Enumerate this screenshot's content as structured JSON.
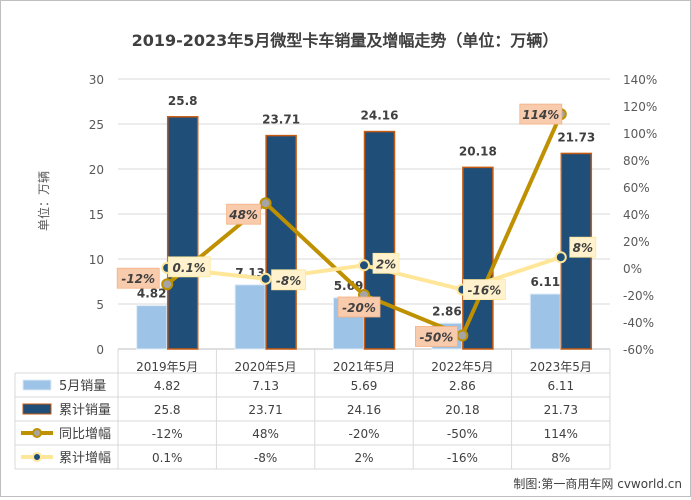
{
  "chart_data": {
    "type": "bar",
    "title": "2019-2023年5月微型卡车销量及增幅走势（单位：万辆）",
    "ylabel": "单位：万辆",
    "categories": [
      "2019年5月",
      "2020年5月",
      "2021年5月",
      "2022年5月",
      "2023年5月"
    ],
    "ylim": [
      0,
      30
    ],
    "yticks": [
      "0",
      "5",
      "10",
      "15",
      "20",
      "25",
      "30"
    ],
    "y2lim": [
      -60,
      140
    ],
    "y2ticks": [
      "-60%",
      "-40%",
      "-20%",
      "0%",
      "20%",
      "40%",
      "60%",
      "80%",
      "100%",
      "120%",
      "140%"
    ],
    "series": [
      {
        "name": "5月销量",
        "kind": "bar",
        "color": "#9dc3e6",
        "values": [
          4.82,
          7.13,
          5.69,
          2.86,
          6.11
        ],
        "labels": [
          "4.82",
          "7.13",
          "5.69",
          "2.86",
          "6.11"
        ]
      },
      {
        "name": "累计销量",
        "kind": "bar",
        "color": "#1f4e79",
        "values": [
          25.8,
          23.71,
          24.16,
          20.18,
          21.73
        ],
        "labels": [
          "25.8",
          "23.71",
          "24.16",
          "20.18",
          "21.73"
        ]
      },
      {
        "name": "同比增幅",
        "kind": "line",
        "axis": "right",
        "color": "#bf9000",
        "values": [
          -12,
          48,
          -20,
          -50,
          114
        ],
        "labels": [
          "-12%",
          "48%",
          "-20%",
          "-50%",
          "114%"
        ]
      },
      {
        "name": "累计增幅",
        "kind": "line",
        "axis": "right",
        "color": "#ffe699",
        "values": [
          0.1,
          -8,
          2,
          -16,
          8
        ],
        "labels": [
          "0.1%",
          "-8%",
          "2%",
          "-16%",
          "8%"
        ]
      }
    ],
    "table": [
      [
        "4.82",
        "7.13",
        "5.69",
        "2.86",
        "6.11"
      ],
      [
        "25.8",
        "23.71",
        "24.16",
        "20.18",
        "21.73"
      ],
      [
        "-12%",
        "48%",
        "-20%",
        "-50%",
        "114%"
      ],
      [
        "0.1%",
        "-8%",
        "2%",
        "-16%",
        "8%"
      ]
    ],
    "source": "制图:第一商用车网 cvworld.cn"
  }
}
